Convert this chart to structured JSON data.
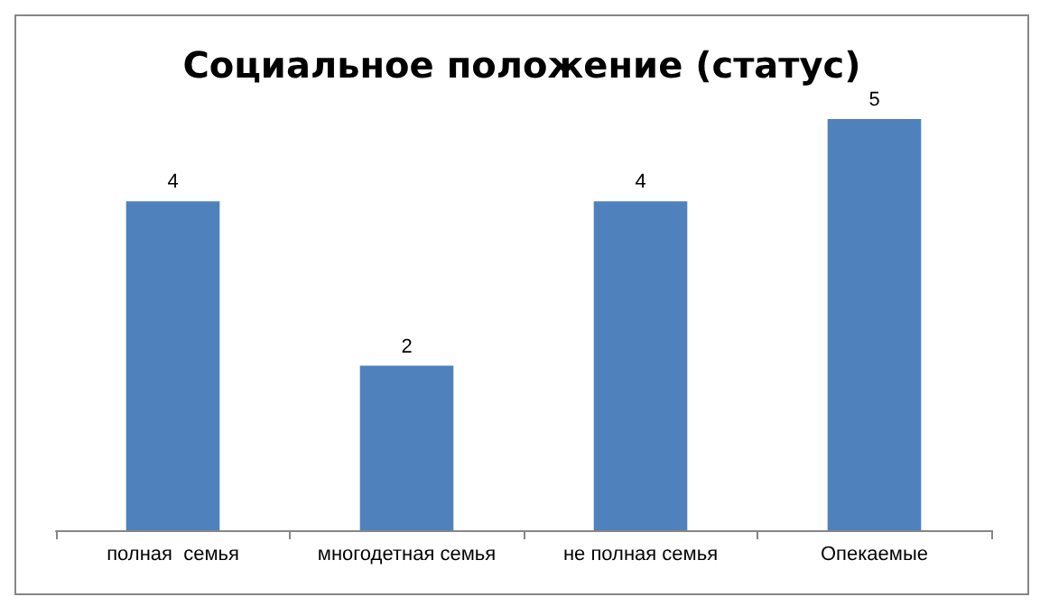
{
  "chart_data": {
    "type": "bar",
    "title": "Социальное положение (статус)",
    "categories": [
      "полная  семья",
      "многодетная семья",
      "не полная семья",
      "Опекаемые"
    ],
    "values": [
      4,
      2,
      4,
      5
    ],
    "color": "#4f81bd",
    "data_labels": true,
    "tick_labels": "x"
  }
}
